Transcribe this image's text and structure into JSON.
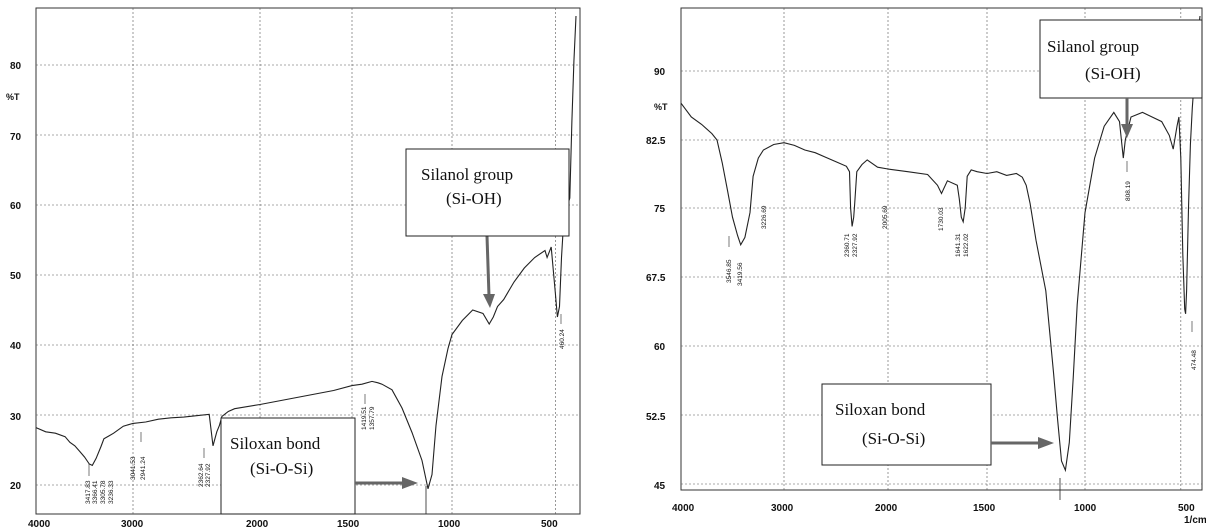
{
  "chart_data": [
    {
      "type": "line",
      "ylabel": "%T",
      "x_ticks": [
        "4000",
        "3000",
        "2000",
        "1500",
        "1000",
        "500"
      ],
      "y_ticks": [
        "20",
        "30",
        "40",
        "50",
        "60",
        "70",
        "80"
      ],
      "peak_labels": [
        "3417.83",
        "3366.41",
        "3305.78",
        "3236.33",
        "3041.53",
        "2941.24",
        "2362.64",
        "2327.92",
        "1419.51",
        "1357.79",
        "460.24"
      ],
      "annotations": [
        {
          "line1": "Silanol group",
          "line2": "(Si-OH)"
        },
        {
          "line1": "Siloxan bond",
          "line2": "(Si-O-Si)"
        }
      ],
      "ylim": [
        18,
        88
      ],
      "x": [
        4000,
        3900,
        3800,
        3700,
        3650,
        3600,
        3550,
        3500,
        3450,
        3420,
        3380,
        3330,
        3300,
        3250,
        3200,
        3100,
        3000,
        2900,
        2800,
        2700,
        2600,
        2500,
        2400,
        2370,
        2340,
        2320,
        2300,
        2250,
        2200,
        2000,
        1800,
        1600,
        1500,
        1450,
        1400,
        1370,
        1350,
        1300,
        1250,
        1200,
        1150,
        1120,
        1100,
        1080,
        1050,
        1020,
        1000,
        950,
        900,
        850,
        820,
        800,
        780,
        750,
        700,
        650,
        600,
        550,
        540,
        520,
        500,
        490,
        480,
        470,
        460,
        450,
        440,
        430,
        420,
        410,
        400
      ],
      "y": [
        28.2,
        27.6,
        27.4,
        26.9,
        26.1,
        25.6,
        24.8,
        24.0,
        23.0,
        22.8,
        23.8,
        25.5,
        26.6,
        27.0,
        27.4,
        28.4,
        28.8,
        29.0,
        29.4,
        29.6,
        29.7,
        29.9,
        30.1,
        25.6,
        27.6,
        28.5,
        29.8,
        30.5,
        30.9,
        31.5,
        32.5,
        33.5,
        34.2,
        34.4,
        34.8,
        34.6,
        34.4,
        33.6,
        31.0,
        27.5,
        23.5,
        19.5,
        21.5,
        28.5,
        35.5,
        39.5,
        41.5,
        43.5,
        45.0,
        44.5,
        43.0,
        44.0,
        45.5,
        46.5,
        49.0,
        51.0,
        52.5,
        53.5,
        52.5,
        54.0,
        47.5,
        44.0,
        45.5,
        52.5,
        57.5,
        59.5,
        60.0,
        61.0,
        72.0,
        80.5,
        87.0
      ]
    },
    {
      "type": "line",
      "ylabel": "%T",
      "x_ticks": [
        "4000",
        "3000",
        "2000",
        "1500",
        "1000",
        "500"
      ],
      "x_unit": "1/cm",
      "y_ticks": [
        "45",
        "52.5",
        "60",
        "67.5",
        "75",
        "82.5",
        "90"
      ],
      "peak_labels": [
        "3546.85",
        "3419.56",
        "3226.69",
        "2360.71",
        "2327.92",
        "2005.69",
        "1730.03",
        "1641.31",
        "1622.02",
        "808.19",
        "474.48"
      ],
      "annotations": [
        {
          "line1": "Silanol group",
          "line2": "(Si-OH)"
        },
        {
          "line1": "Siloxan bond",
          "line2": "(Si-O-Si)"
        }
      ],
      "ylim": [
        44,
        96
      ],
      "x": [
        4000,
        3900,
        3800,
        3700,
        3650,
        3600,
        3550,
        3500,
        3450,
        3420,
        3380,
        3330,
        3300,
        3250,
        3200,
        3100,
        3000,
        2900,
        2800,
        2700,
        2600,
        2500,
        2400,
        2370,
        2360,
        2345,
        2330,
        2320,
        2300,
        2250,
        2200,
        2100,
        2000,
        1900,
        1800,
        1750,
        1730,
        1700,
        1650,
        1640,
        1630,
        1620,
        1610,
        1600,
        1580,
        1550,
        1500,
        1450,
        1400,
        1350,
        1320,
        1300,
        1280,
        1250,
        1200,
        1180,
        1160,
        1140,
        1120,
        1100,
        1080,
        1060,
        1040,
        1000,
        950,
        900,
        850,
        820,
        810,
        800,
        790,
        760,
        700,
        650,
        600,
        560,
        540,
        520,
        510,
        500,
        490,
        480,
        475,
        470,
        460,
        450,
        440,
        430,
        420,
        410,
        400
      ],
      "y": [
        86.5,
        85.0,
        84.2,
        83.2,
        82.5,
        80.0,
        77.0,
        74.0,
        72.0,
        71.0,
        71.8,
        74.5,
        78.5,
        80.5,
        81.4,
        82.0,
        82.2,
        81.9,
        81.4,
        81.1,
        80.6,
        80.1,
        79.6,
        79.0,
        75.0,
        73.0,
        74.0,
        75.5,
        79.0,
        79.8,
        80.3,
        79.5,
        79.3,
        79.0,
        78.7,
        77.5,
        76.6,
        78.0,
        77.5,
        76.0,
        74.0,
        73.5,
        75.0,
        78.5,
        79.2,
        79.0,
        78.8,
        79.0,
        78.6,
        78.8,
        78.4,
        77.5,
        75.5,
        71.5,
        66.0,
        61.5,
        57.0,
        52.0,
        47.5,
        46.5,
        49.5,
        56.5,
        64.5,
        74.5,
        80.5,
        84.0,
        85.5,
        84.5,
        82.5,
        80.5,
        82.5,
        85.0,
        85.5,
        85.0,
        84.5,
        83.0,
        81.5,
        84.0,
        85.0,
        80.5,
        70.0,
        64.0,
        63.5,
        66.0,
        75.0,
        82.0,
        86.0,
        89.0,
        92.0,
        94.0,
        96.0
      ]
    }
  ]
}
